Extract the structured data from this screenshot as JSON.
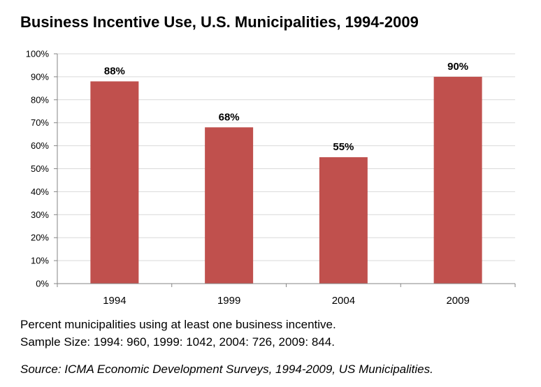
{
  "chart_data": {
    "type": "bar",
    "title": "Business Incentive Use, U.S. Municipalities, 1994-2009",
    "categories": [
      "1994",
      "1999",
      "2004",
      "2009"
    ],
    "values": [
      88,
      68,
      55,
      90
    ],
    "data_labels": [
      "88%",
      "68%",
      "55%",
      "90%"
    ],
    "ylim": [
      0,
      100
    ],
    "ytick_step": 10,
    "ytick_labels": [
      "0%",
      "10%",
      "20%",
      "30%",
      "40%",
      "50%",
      "60%",
      "70%",
      "80%",
      "90%",
      "100%"
    ],
    "xlabel": "",
    "ylabel": "",
    "grid": true,
    "bar_color": "#c0504d",
    "grid_color": "#d9d9d9",
    "axis_color": "#868686"
  },
  "notes": {
    "line1": "Percent municipalities using at least one business incentive.",
    "line2": "Sample Size: 1994: 960, 1999: 1042, 2004: 726, 2009: 844.",
    "source": "Source: ICMA Economic Development Surveys, 1994-2009, US Municipalities."
  }
}
